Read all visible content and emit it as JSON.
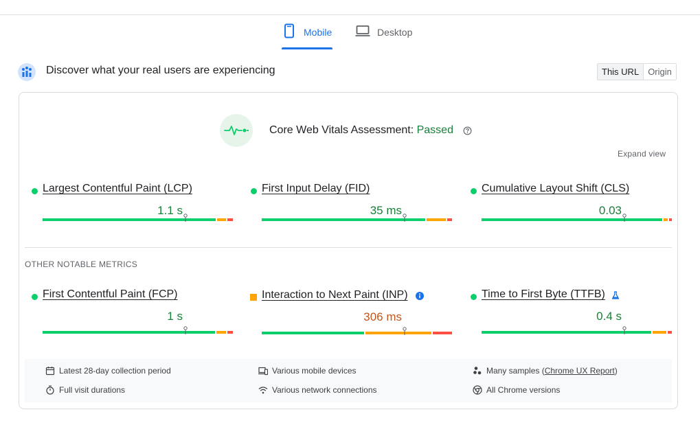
{
  "tabs": {
    "mobile": "Mobile",
    "desktop": "Desktop"
  },
  "header": {
    "title": "Discover what your real users are experiencing",
    "toggle_this_url": "This URL",
    "toggle_origin": "Origin"
  },
  "assessment": {
    "label": "Core Web Vitals Assessment: ",
    "status": "Passed",
    "expand": "Expand view"
  },
  "core_metrics": [
    {
      "name": "Largest Contentful Paint (LCP)",
      "value": "1.1 s",
      "rating": "good",
      "marker": 0.75
    },
    {
      "name": "First Input Delay (FID)",
      "value": "35 ms",
      "rating": "good",
      "marker": 0.75
    },
    {
      "name": "Cumulative Layout Shift (CLS)",
      "value": "0.03",
      "rating": "good",
      "marker": 0.75
    }
  ],
  "other_label": "OTHER NOTABLE METRICS",
  "other_metrics": [
    {
      "name": "First Contentful Paint (FCP)",
      "value": "1 s",
      "rating": "good",
      "marker": 0.75
    },
    {
      "name": "Interaction to Next Paint (INP)",
      "value": "306 ms",
      "rating": "needs-improvement",
      "marker": 0.75
    },
    {
      "name": "Time to First Byte (TTFB)",
      "value": "0.4 s",
      "rating": "good",
      "marker": 0.75
    }
  ],
  "footer": {
    "collection_period": "Latest 28-day collection period",
    "devices": "Various mobile devices",
    "samples_prefix": "Many samples (",
    "samples_link": "Chrome UX Report",
    "samples_suffix": ")",
    "durations": "Full visit durations",
    "network": "Various network connections",
    "chrome_versions": "All Chrome versions"
  },
  "colors": {
    "accent": "#1a73e8",
    "good": "#0cce6b",
    "needs_improvement": "#ffa400",
    "poor": "#ff4e42",
    "good_text": "#188038",
    "average_text": "#c5561a"
  }
}
